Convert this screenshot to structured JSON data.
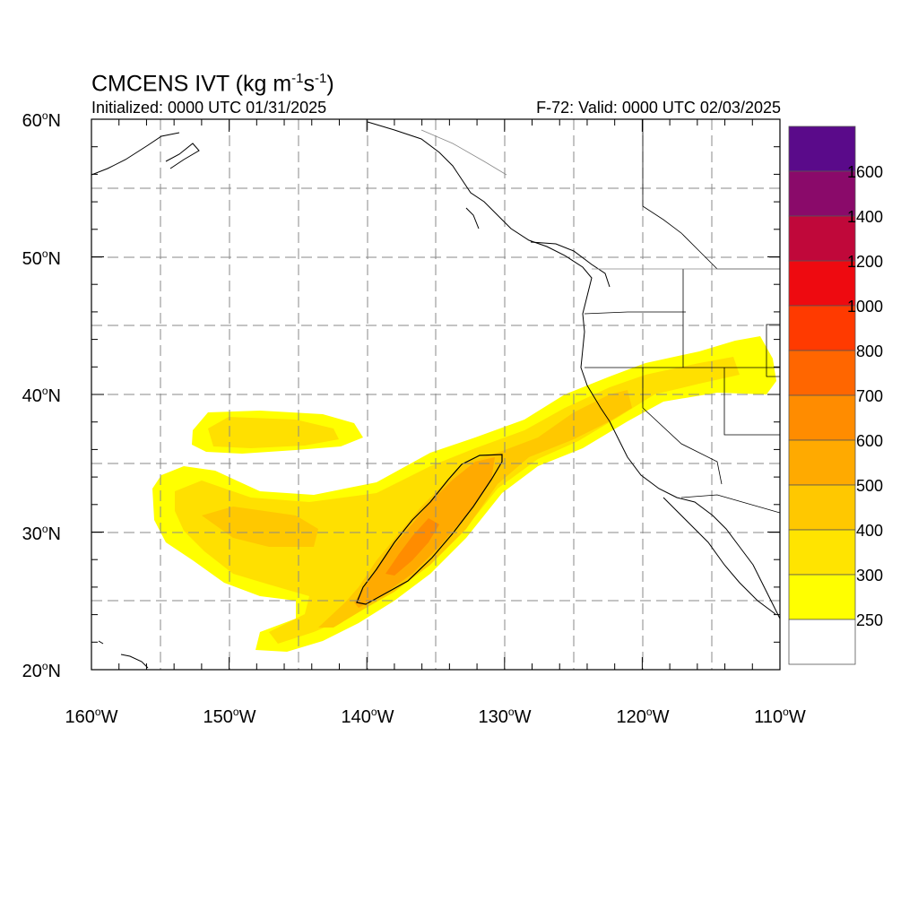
{
  "header": {
    "title_main": "CMCENS IVT (kg m",
    "title_exp1": "-1",
    "title_mid": "s",
    "title_exp2": "-1",
    "title_end": ")",
    "init": "Initialized: 0000 UTC 01/31/2025",
    "valid": "F-72: Valid: 0000 UTC 02/03/2025"
  },
  "axes": {
    "lon_labels": [
      {
        "num": "160",
        "hemi": "W"
      },
      {
        "num": "150",
        "hemi": "W"
      },
      {
        "num": "140",
        "hemi": "W"
      },
      {
        "num": "130",
        "hemi": "W"
      },
      {
        "num": "120",
        "hemi": "W"
      },
      {
        "num": "110",
        "hemi": "W"
      }
    ],
    "lat_labels": [
      {
        "num": "60",
        "hemi": "N"
      },
      {
        "num": "50",
        "hemi": "N"
      },
      {
        "num": "40",
        "hemi": "N"
      },
      {
        "num": "30",
        "hemi": "N"
      },
      {
        "num": "20",
        "hemi": "N"
      }
    ]
  },
  "colorbar": {
    "labels": [
      "1600",
      "1400",
      "1200",
      "1000",
      "800",
      "700",
      "600",
      "500",
      "400",
      "300",
      "250"
    ],
    "colors": [
      "#5a0a8a",
      "#8a0a6a",
      "#c0083a",
      "#ee0a10",
      "#ff3a00",
      "#ff6600",
      "#ff8c00",
      "#ffaa00",
      "#ffc800",
      "#ffe400",
      "#ffff00",
      "#ffffff"
    ]
  },
  "chart_data": {
    "type": "heatmap",
    "variable": "IVT",
    "units": "kg m-1 s-1",
    "lon_range": [
      -160,
      -110
    ],
    "lat_range": [
      20,
      60
    ],
    "levels": [
      250,
      300,
      400,
      500,
      600,
      700,
      800,
      1000,
      1200,
      1400,
      1600
    ],
    "grid": true
  }
}
